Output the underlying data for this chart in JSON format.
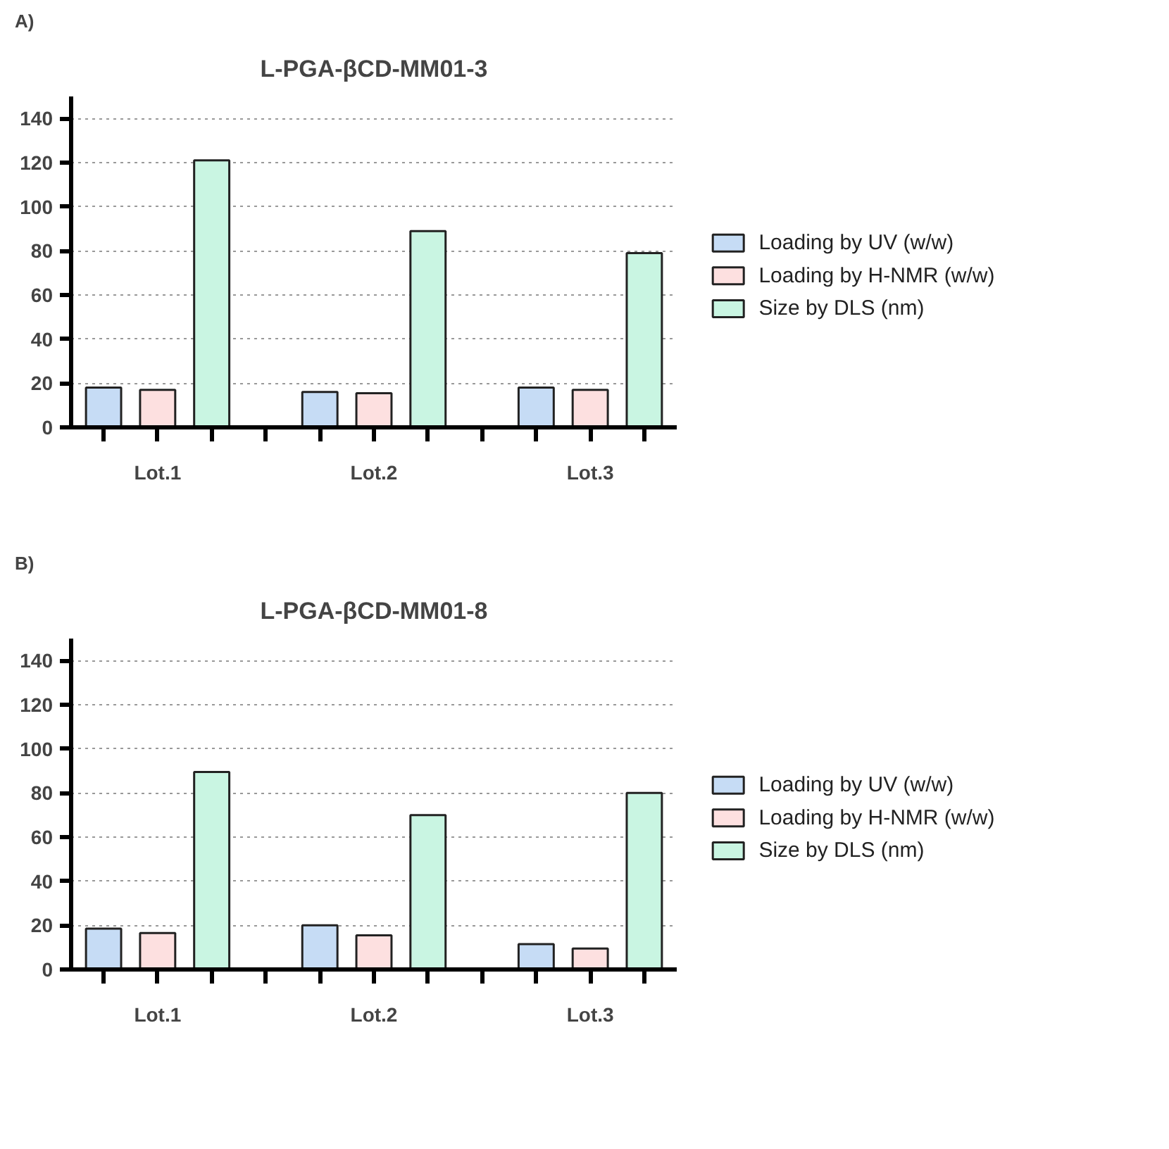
{
  "chart_data": [
    {
      "type": "bar",
      "title": "L-PGA-βCD-MM01-3",
      "annotations": [
        "A)"
      ],
      "categories": [
        "Lot.1",
        "Lot.2",
        "Lot.3"
      ],
      "series": [
        {
          "name": "Loading by UV (w/w)",
          "color": "#c6dcf5",
          "values": [
            18,
            16,
            18
          ]
        },
        {
          "name": "Loading by H-NMR (w/w)",
          "color": "#fde0e0",
          "values": [
            17,
            15.5,
            17
          ]
        },
        {
          "name": "Size by DLS (nm)",
          "color": "#c9f5e2",
          "values": [
            121,
            89,
            79
          ]
        }
      ],
      "ylim": [
        0,
        150
      ],
      "yticks": [
        0,
        20,
        40,
        60,
        80,
        100,
        120,
        140
      ],
      "grid": "y",
      "legend": "right"
    },
    {
      "type": "bar",
      "title": "L-PGA-βCD-MM01-8",
      "annotations": [
        "B)"
      ],
      "categories": [
        "Lot.1",
        "Lot.2",
        "Lot.3"
      ],
      "series": [
        {
          "name": "Loading by UV (w/w)",
          "color": "#c6dcf5",
          "values": [
            18.5,
            20,
            11.5
          ]
        },
        {
          "name": "Loading by H-NMR (w/w)",
          "color": "#fde0e0",
          "values": [
            16.5,
            15.5,
            9.5
          ]
        },
        {
          "name": "Size by DLS (nm)",
          "color": "#c9f5e2",
          "values": [
            89.5,
            70,
            80
          ]
        }
      ],
      "ylim": [
        0,
        150
      ],
      "yticks": [
        0,
        20,
        40,
        60,
        80,
        100,
        120,
        140
      ],
      "grid": "y",
      "legend": "right"
    }
  ]
}
